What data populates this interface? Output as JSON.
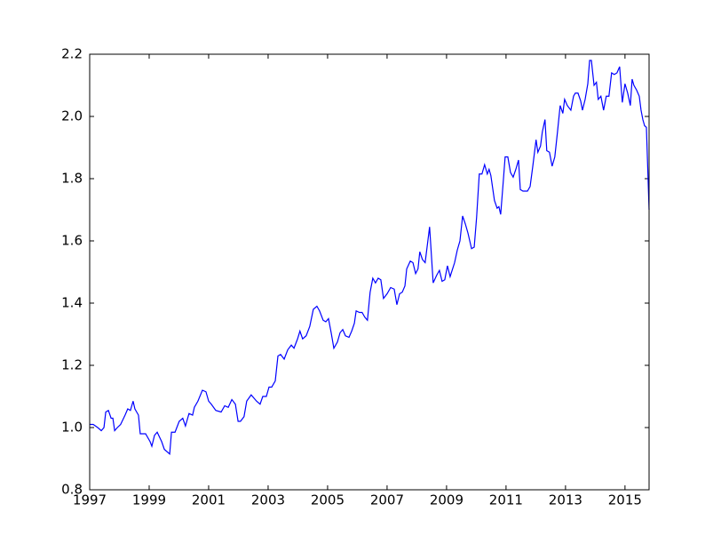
{
  "chart_data": {
    "type": "line",
    "color": "#0000ff",
    "grid": false,
    "xlim": [
      1997,
      2015.81
    ],
    "xticks": [
      1997,
      1999,
      2001,
      2003,
      2005,
      2007,
      2009,
      2011,
      2013,
      2015
    ],
    "ylim": [
      0.8,
      2.2
    ],
    "yticks": [
      0.8,
      {
        "value": 1.0,
        "label": "1.0"
      },
      1.2,
      1.4,
      1.6,
      1.8,
      {
        "value": 2.0,
        "label": "2.0"
      },
      2.2
    ],
    "x": [
      1997.0,
      1997.12,
      1997.27,
      1997.39,
      1997.48,
      1997.54,
      1997.63,
      1997.72,
      1997.78,
      1997.84,
      1997.93,
      1998.04,
      1998.19,
      1998.28,
      1998.37,
      1998.46,
      1998.52,
      1998.64,
      1998.7,
      1998.88,
      1999.03,
      1999.09,
      1999.18,
      1999.27,
      1999.42,
      1999.51,
      1999.69,
      1999.75,
      1999.87,
      2000.01,
      2000.13,
      2000.22,
      2000.34,
      2000.46,
      2000.52,
      2000.64,
      2000.79,
      2000.91,
      2001.0,
      2001.09,
      2001.24,
      2001.42,
      2001.54,
      2001.66,
      2001.78,
      2001.9,
      2001.99,
      2002.07,
      2002.19,
      2002.28,
      2002.43,
      2002.52,
      2002.61,
      2002.73,
      2002.82,
      2002.94,
      2003.03,
      2003.12,
      2003.24,
      2003.33,
      2003.42,
      2003.54,
      2003.66,
      2003.78,
      2003.87,
      2003.99,
      2004.07,
      2004.16,
      2004.28,
      2004.4,
      2004.52,
      2004.64,
      2004.73,
      2004.85,
      2004.94,
      2005.03,
      2005.12,
      2005.21,
      2005.33,
      2005.42,
      2005.51,
      2005.6,
      2005.72,
      2005.81,
      2005.9,
      2005.96,
      2006.07,
      2006.16,
      2006.25,
      2006.34,
      2006.43,
      2006.52,
      2006.61,
      2006.7,
      2006.79,
      2006.88,
      2007.0,
      2007.12,
      2007.24,
      2007.33,
      2007.42,
      2007.51,
      2007.6,
      2007.66,
      2007.78,
      2007.87,
      2007.96,
      2008.04,
      2008.1,
      2008.19,
      2008.28,
      2008.43,
      2008.55,
      2008.67,
      2008.76,
      2008.85,
      2008.94,
      2009.03,
      2009.12,
      2009.27,
      2009.36,
      2009.45,
      2009.54,
      2009.63,
      2009.72,
      2009.84,
      2009.93,
      2010.01,
      2010.1,
      2010.19,
      2010.28,
      2010.37,
      2010.43,
      2010.49,
      2010.61,
      2010.7,
      2010.76,
      2010.82,
      2010.91,
      2010.97,
      2011.06,
      2011.15,
      2011.24,
      2011.33,
      2011.42,
      2011.48,
      2011.57,
      2011.72,
      2011.81,
      2011.9,
      2012.01,
      2012.07,
      2012.16,
      2012.22,
      2012.31,
      2012.37,
      2012.46,
      2012.55,
      2012.64,
      2012.73,
      2012.82,
      2012.91,
      2012.97,
      2013.06,
      2013.18,
      2013.27,
      2013.33,
      2013.42,
      2013.51,
      2013.57,
      2013.66,
      2013.75,
      2013.81,
      2013.87,
      2013.96,
      2014.04,
      2014.1,
      2014.19,
      2014.28,
      2014.37,
      2014.46,
      2014.55,
      2014.64,
      2014.73,
      2014.82,
      2014.91,
      2015.0,
      2015.09,
      2015.18,
      2015.24,
      2015.3,
      2015.39,
      2015.48,
      2015.54,
      2015.6,
      2015.66,
      2015.72,
      2015.81
    ],
    "values": [
      1.01,
      1.01,
      1.0,
      0.99,
      1.0,
      1.05,
      1.055,
      1.03,
      1.03,
      0.99,
      1.0,
      1.01,
      1.04,
      1.06,
      1.055,
      1.085,
      1.06,
      1.04,
      0.98,
      0.98,
      0.955,
      0.94,
      0.975,
      0.985,
      0.955,
      0.93,
      0.915,
      0.985,
      0.985,
      1.02,
      1.03,
      1.005,
      1.045,
      1.04,
      1.065,
      1.085,
      1.12,
      1.115,
      1.085,
      1.075,
      1.055,
      1.05,
      1.07,
      1.065,
      1.09,
      1.075,
      1.02,
      1.02,
      1.035,
      1.085,
      1.105,
      1.095,
      1.085,
      1.075,
      1.1,
      1.1,
      1.13,
      1.13,
      1.15,
      1.23,
      1.235,
      1.22,
      1.25,
      1.265,
      1.255,
      1.285,
      1.31,
      1.285,
      1.295,
      1.325,
      1.38,
      1.39,
      1.375,
      1.345,
      1.34,
      1.35,
      1.305,
      1.255,
      1.275,
      1.305,
      1.315,
      1.295,
      1.29,
      1.31,
      1.335,
      1.375,
      1.37,
      1.37,
      1.355,
      1.345,
      1.435,
      1.48,
      1.465,
      1.48,
      1.475,
      1.415,
      1.43,
      1.45,
      1.445,
      1.395,
      1.43,
      1.435,
      1.455,
      1.51,
      1.535,
      1.53,
      1.495,
      1.51,
      1.565,
      1.54,
      1.53,
      1.645,
      1.465,
      1.49,
      1.505,
      1.47,
      1.475,
      1.52,
      1.485,
      1.53,
      1.57,
      1.6,
      1.68,
      1.655,
      1.625,
      1.575,
      1.58,
      1.675,
      1.815,
      1.815,
      1.845,
      1.815,
      1.83,
      1.81,
      1.73,
      1.705,
      1.71,
      1.685,
      1.795,
      1.87,
      1.87,
      1.82,
      1.805,
      1.83,
      1.86,
      1.765,
      1.76,
      1.76,
      1.775,
      1.84,
      1.925,
      1.885,
      1.905,
      1.95,
      1.99,
      1.89,
      1.885,
      1.84,
      1.87,
      1.95,
      2.035,
      2.01,
      2.055,
      2.035,
      2.02,
      2.065,
      2.075,
      2.075,
      2.05,
      2.02,
      2.055,
      2.105,
      2.18,
      2.18,
      2.1,
      2.11,
      2.055,
      2.065,
      2.02,
      2.065,
      2.065,
      2.14,
      2.135,
      2.14,
      2.16,
      2.045,
      2.105,
      2.075,
      2.035,
      2.12,
      2.1,
      2.085,
      2.065,
      2.02,
      1.99,
      1.97,
      1.965,
      1.7
    ]
  }
}
